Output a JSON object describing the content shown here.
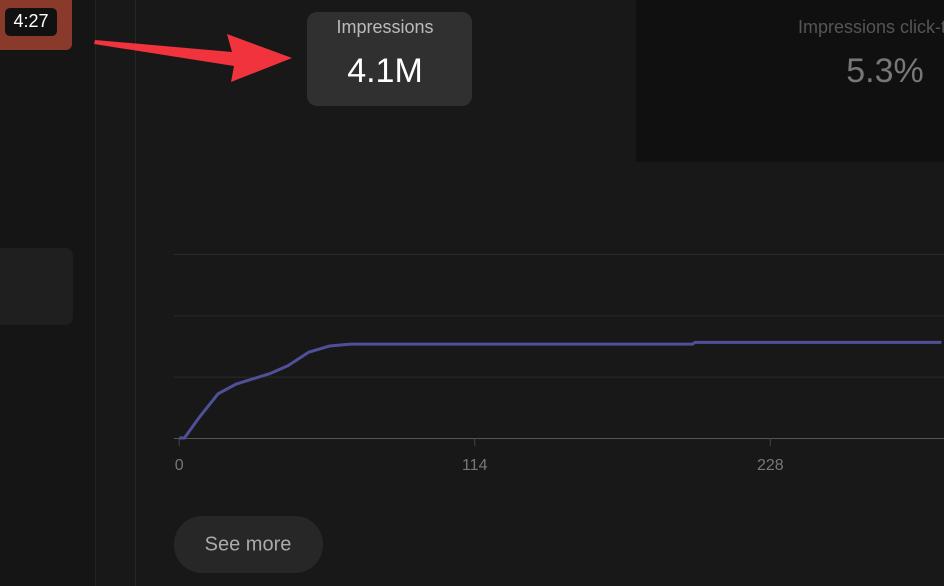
{
  "thumbnail": {
    "duration": "4:27"
  },
  "metrics": [
    {
      "label": "Impressions",
      "value": "4.1M"
    },
    {
      "label": "Impressions click-thro",
      "value": "5.3%"
    }
  ],
  "chart_data": {
    "type": "line",
    "x": [
      0,
      2,
      8,
      15,
      22,
      35,
      42,
      50,
      58,
      66,
      198,
      199,
      294
    ],
    "series": [
      {
        "color": "#4f4f9a",
        "values": [
          0,
          0,
          0.35,
          0.72,
          0.88,
          1.05,
          1.18,
          1.4,
          1.5,
          1.53,
          1.53,
          1.56,
          1.56
        ]
      }
    ],
    "xlim": [
      -2,
      295
    ],
    "xticks": [
      0,
      114,
      228
    ],
    "ylim": [
      0,
      3
    ],
    "yticks": [
      0,
      1,
      2,
      3
    ],
    "show_ytick_labels": false,
    "grid": true
  },
  "button": {
    "label": "See more"
  }
}
